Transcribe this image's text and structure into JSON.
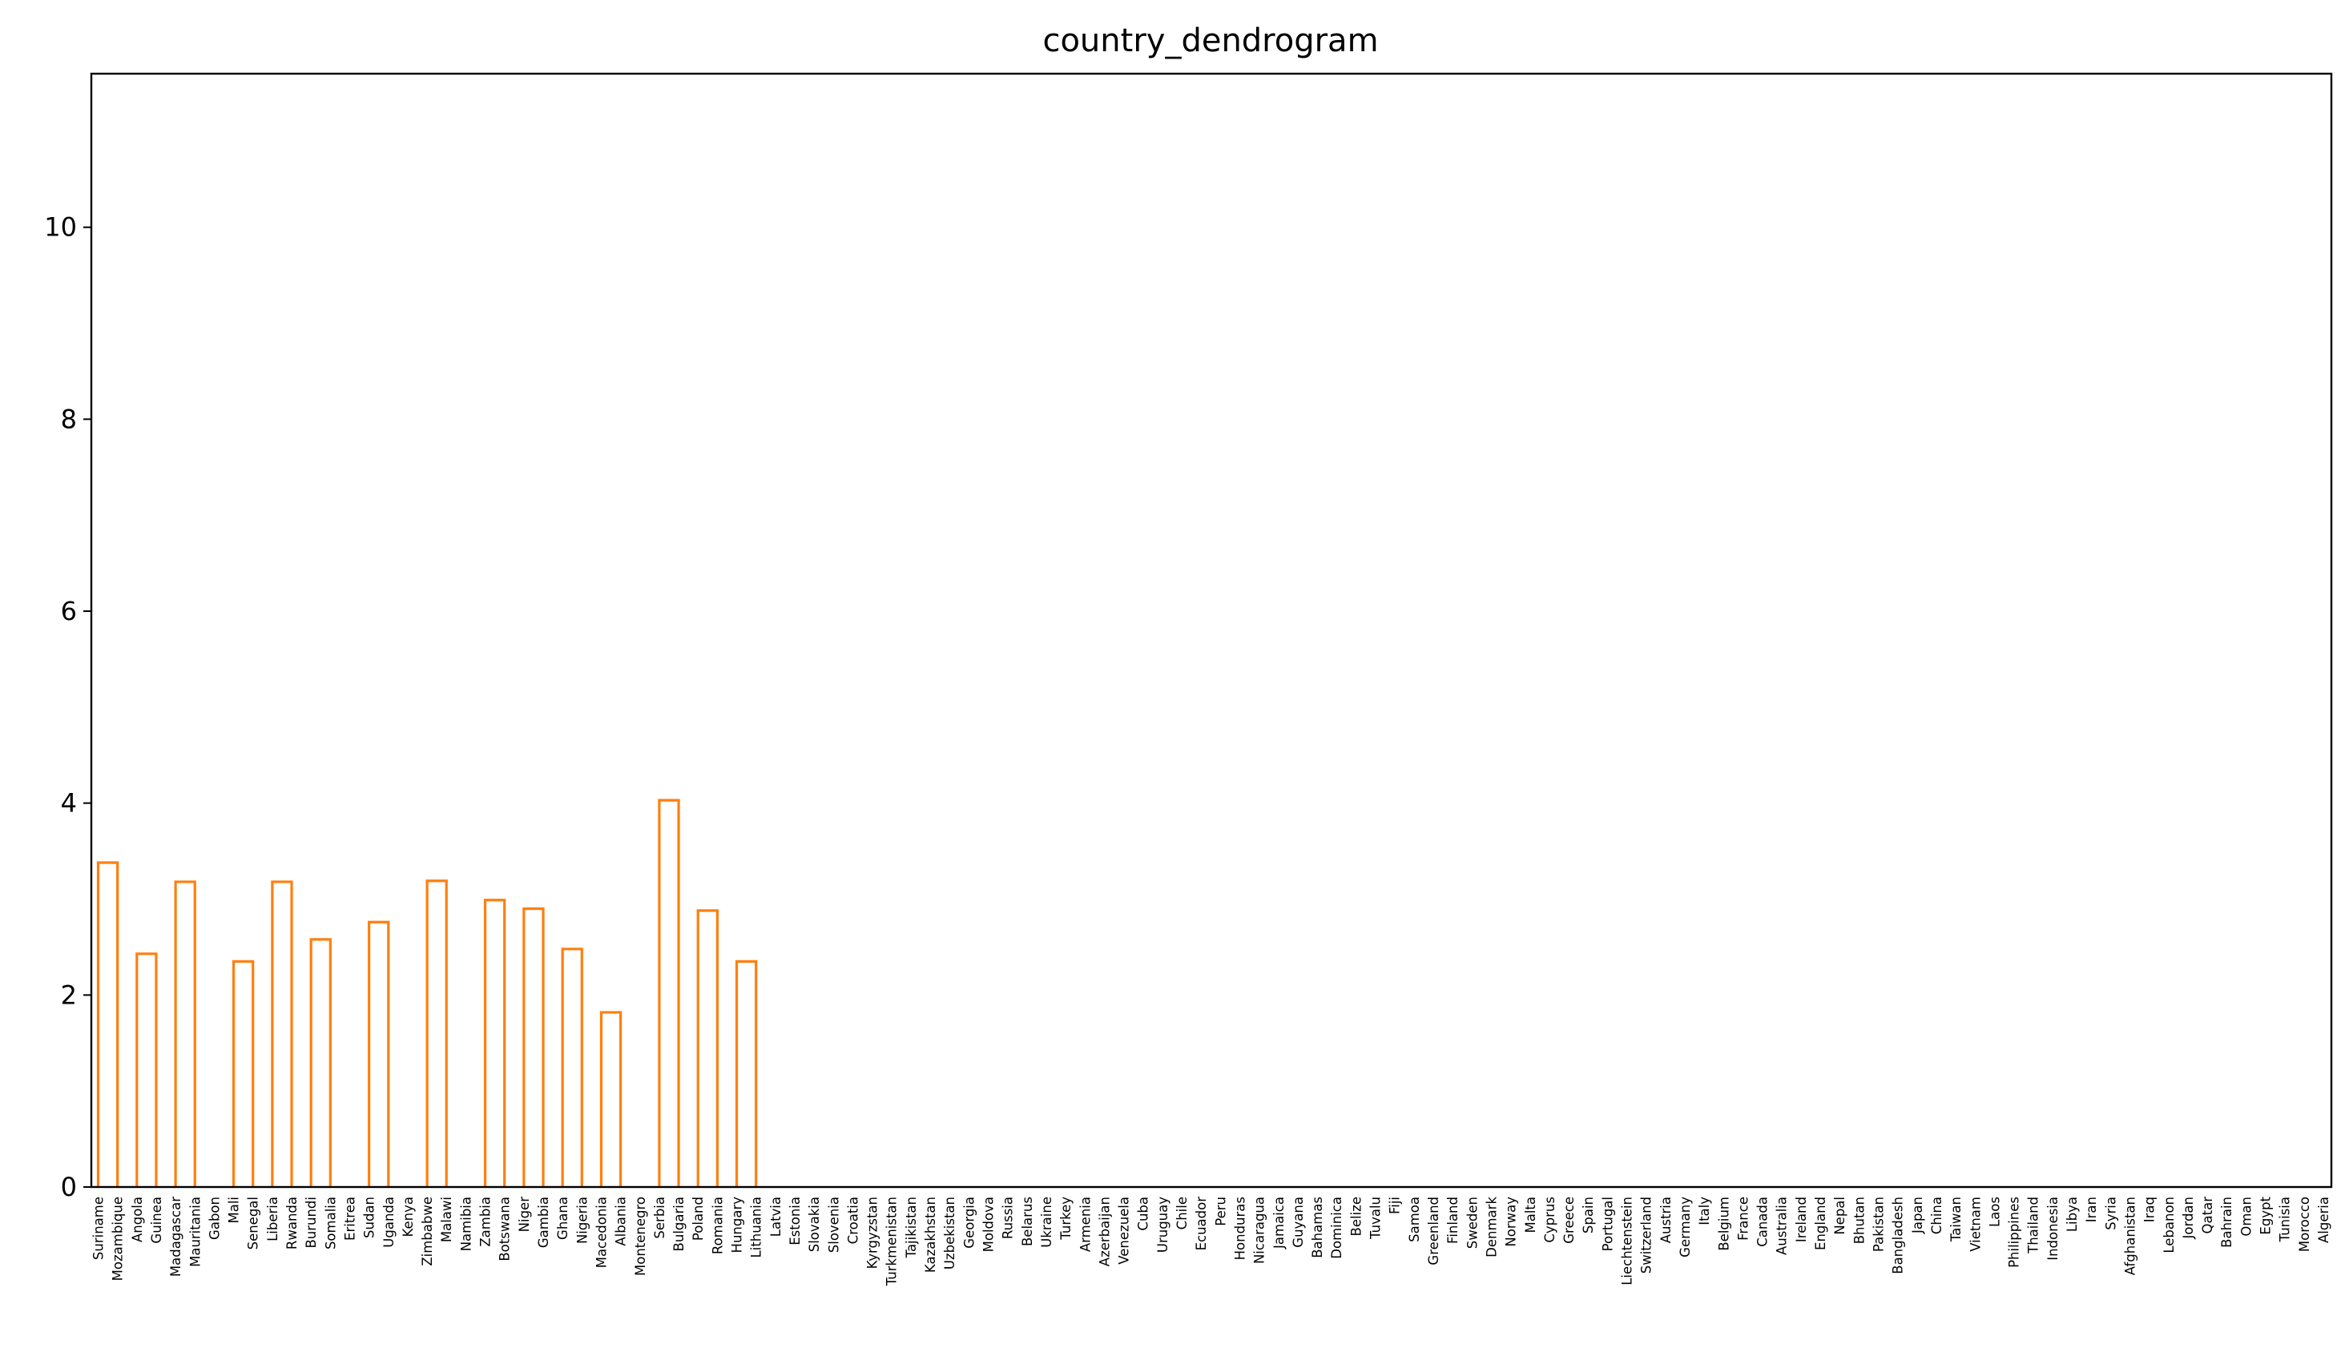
{
  "chart_data": {
    "type": "dendrogram",
    "title": "country_dendrogram",
    "xlabel": "",
    "ylabel": "",
    "ylim": [
      0,
      11.6
    ],
    "yticks": [
      0,
      2,
      4,
      6,
      8,
      10
    ],
    "ytick_labels": [
      "0",
      "2",
      "4",
      "6",
      "8",
      "10"
    ],
    "grid": false,
    "leaves": [
      "Suriname",
      "Mozambique",
      "Angola",
      "Guinea",
      "Madagascar",
      "Mauritania",
      "Gabon",
      "Mali",
      "Senegal",
      "Liberia",
      "Rwanda",
      "Burundi",
      "Somalia",
      "Eritrea",
      "Sudan",
      "Uganda",
      "Kenya",
      "Zimbabwe",
      "Malawi",
      "Namibia",
      "Zambia",
      "Botswana",
      "Niger",
      "Gambia",
      "Ghana",
      "Nigeria",
      "Macedonia",
      "Albania",
      "Montenegro",
      "Serbia",
      "Bulgaria",
      "Poland",
      "Romania",
      "Hungary",
      "Lithuania",
      "Latvia",
      "Estonia",
      "Slovakia",
      "Slovenia",
      "Croatia",
      "Kyrgyzstan",
      "Turkmenistan",
      "Tajikistan",
      "Kazakhstan",
      "Uzbekistan",
      "Georgia",
      "Moldova",
      "Russia",
      "Belarus",
      "Ukraine",
      "Turkey",
      "Armenia",
      "Azerbaijan",
      "Venezuela",
      "Cuba",
      "Uruguay",
      "Chile",
      "Ecuador",
      "Peru",
      "Honduras",
      "Nicaragua",
      "Jamaica",
      "Guyana",
      "Bahamas",
      "Dominica",
      "Belize",
      "Tuvalu",
      "Fiji",
      "Samoa",
      "Greenland",
      "Finland",
      "Sweden",
      "Denmark",
      "Norway",
      "Malta",
      "Cyprus",
      "Greece",
      "Spain",
      "Portugal",
      "Liechtenstein",
      "Switzerland",
      "Austria",
      "Germany",
      "Italy",
      "Belgium",
      "France",
      "Canada",
      "Australia",
      "Ireland",
      "England",
      "Nepal",
      "Bhutan",
      "Pakistan",
      "Bangladesh",
      "Japan",
      "China",
      "Taiwan",
      "Vietnam",
      "Laos",
      "Philippines",
      "Thailand",
      "Indonesia",
      "Libya",
      "Iran",
      "Syria",
      "Afghanistan",
      "Iraq",
      "Lebanon",
      "Jordan",
      "Qatar",
      "Bahrain",
      "Oman",
      "Egypt",
      "Tunisia",
      "Morocco",
      "Algeria"
    ],
    "colors": {
      "above_threshold": "#1f77b4",
      "cluster_1": "#ff7f0e",
      "cluster_2": "#2ca02c",
      "cluster_3": "#d62728",
      "cluster_4": "#9467bd",
      "cluster_5": "#8c564b"
    },
    "links": [
      {
        "a": 0,
        "b": 1,
        "h": 3.38,
        "c": "cluster_1"
      },
      {
        "a": 2,
        "b": 3,
        "h": 2.43,
        "c": "cluster_1"
      },
      {
        "a": 4,
        "b": 5,
        "h": 3.18,
        "c": "cluster_1"
      },
      {
        "a": 7,
        "b": 8,
        "h": 2.35,
        "c": "cluster_1"
      },
      {
        "a": 9,
        "b": 10,
        "h": 3.18,
        "c": "cluster_1"
      },
      {
        "a": 11,
        "b": 12,
        "h": 2.58,
        "c": "cluster_1"
      },
      {
        "a": 14,
        "b": 15,
        "h": 2.76,
        "c": "cluster_1"
      },
      {
        "a": 17,
        "b": 18,
        "h": 3.19,
        "c": "cluster_1"
      },
      {
        "a": 20,
        "b": 21,
        "h": 2.99,
        "c": "cluster_1"
      },
      {
        "a": 22,
        "b": 23,
        "h": 2.9,
        "c": "cluster_1"
      },
      {
        "a": 24,
        "b": 25,
        "h": 2.48,
        "c": "cluster_1"
      },
      {
        "a": 26,
        "b": 27,
        "h": 1.82,
        "c": "cluster_1"
      },
      {
        "a": 29,
        "b": 30,
        "h": 4.03,
        "c": "cluster_1"
      },
      {
        "a": 31,
        "b": 32,
        "h": 2.88,
        "c": "cluster_1"
      },
      {
        "a": 33,
        "b": 34,
        "h": 2.35,
        "c": "cluster_1"
      }
    ]
  }
}
